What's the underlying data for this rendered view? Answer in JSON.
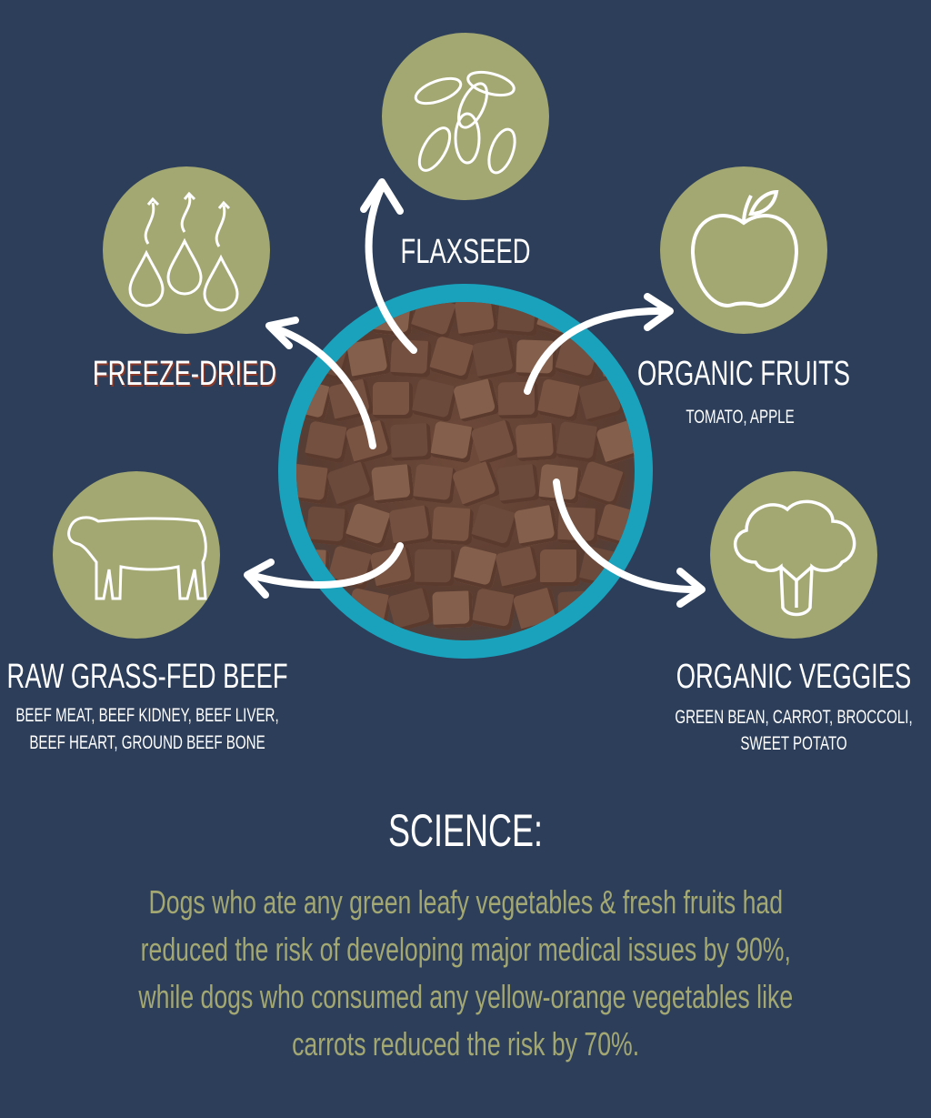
{
  "colors": {
    "background": "#2c3e5a",
    "circle": "#a3a772",
    "bowl": "#1aa2bd",
    "text": "#ffffff",
    "accent_text": "#a3a772"
  },
  "ingredients": {
    "flaxseed": {
      "title": "FLAXSEED",
      "icon": "flaxseed-icon"
    },
    "freeze_dried": {
      "title": "FREEZE-DRIED",
      "icon": "water-drops-icon"
    },
    "fruits": {
      "title": "ORGANIC FRUITS",
      "sub": "TOMATO, APPLE",
      "icon": "apple-icon"
    },
    "beef": {
      "title": "RAW GRASS-FED BEEF",
      "sub1": "BEEF MEAT, BEEF KIDNEY, BEEF LIVER,",
      "sub2": "BEEF HEART, GROUND BEEF BONE",
      "icon": "cow-icon"
    },
    "veggies": {
      "title": "ORGANIC VEGGIES",
      "sub1": "GREEN BEAN, CARROT, BROCCOLI,",
      "sub2": "SWEET POTATO",
      "icon": "broccoli-icon"
    }
  },
  "science": {
    "title": "SCIENCE:",
    "lines": [
      "Dogs who ate any green leafy vegetables & fresh fruits had",
      "reduced the risk of developing major medical issues by 90%,",
      "while dogs who consumed any yellow-orange vegetables like",
      "carrots reduced the risk by 70%."
    ]
  }
}
